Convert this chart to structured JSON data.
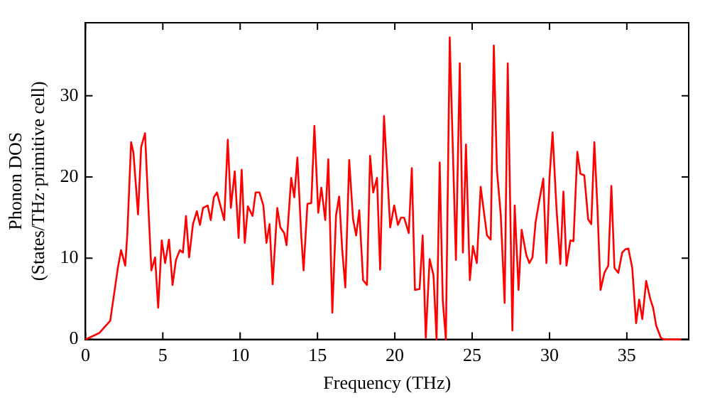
{
  "chart_data": {
    "type": "line",
    "xlabel": "Frequency (THz)",
    "ylabel": "Phonon DOS\n(States/THz·primitive cell)",
    "xlim": [
      0,
      39
    ],
    "ylim": [
      0,
      39
    ],
    "xticks": [
      0,
      5,
      10,
      15,
      20,
      25,
      30,
      35
    ],
    "yticks": [
      0,
      10,
      20,
      30
    ],
    "grid": false,
    "legend": false,
    "marker": "none",
    "line_style": "solid",
    "series": [
      {
        "color": "#ff0000",
        "x": [
          0,
          0.9,
          1.6,
          2.1,
          2.3,
          2.57,
          2.7,
          2.95,
          3.1,
          3.4,
          3.6,
          3.85,
          4.03,
          4.26,
          4.5,
          4.7,
          4.93,
          5.15,
          5.4,
          5.63,
          5.85,
          6.1,
          6.3,
          6.5,
          6.7,
          6.95,
          7.2,
          7.4,
          7.6,
          7.9,
          8.1,
          8.3,
          8.5,
          8.97,
          9.2,
          9.4,
          9.65,
          9.9,
          10.1,
          10.3,
          10.5,
          10.8,
          11,
          11.25,
          11.5,
          11.7,
          11.9,
          12.1,
          12.4,
          12.6,
          12.85,
          13,
          13.3,
          13.5,
          13.7,
          13.95,
          14.1,
          14.35,
          14.6,
          14.8,
          15.05,
          15.25,
          15.5,
          15.7,
          15.96,
          16.2,
          16.4,
          16.6,
          16.8,
          17.05,
          17.3,
          17.5,
          17.7,
          17.95,
          18.2,
          18.4,
          18.6,
          18.85,
          19.05,
          19.3,
          19.5,
          19.7,
          19.96,
          20.2,
          20.4,
          20.6,
          20.9,
          21.1,
          21.3,
          21.6,
          21.8,
          22,
          22.25,
          22.5,
          22.7,
          22.9,
          23.1,
          23.3,
          23.55,
          23.95,
          24.2,
          24.4,
          24.6,
          24.85,
          25.05,
          25.3,
          25.55,
          25.96,
          26.2,
          26.4,
          26.6,
          26.85,
          27.1,
          27.3,
          27.6,
          27.75,
          28,
          28.2,
          28.5,
          28.7,
          28.9,
          29.1,
          29.35,
          29.6,
          29.8,
          30,
          30.2,
          30.45,
          30.7,
          30.9,
          31.1,
          31.35,
          31.55,
          31.8,
          32,
          32.25,
          32.5,
          32.7,
          32.9,
          33.1,
          33.3,
          33.55,
          33.8,
          34,
          34.2,
          34.45,
          34.7,
          34.9,
          35.1,
          35.35,
          35.6,
          35.8,
          36,
          36.25,
          36.5,
          36.7,
          36.9,
          37.2,
          37.4,
          38.5
        ],
        "values": [
          0,
          0.8,
          2.3,
          8.9,
          11,
          9.1,
          12.8,
          24.3,
          23,
          15.4,
          23.7,
          25.4,
          17.8,
          8.5,
          10.1,
          3.9,
          12.2,
          9.4,
          12.3,
          6.7,
          9.8,
          11,
          10.7,
          15.2,
          10.1,
          14.2,
          15.8,
          14.1,
          16.2,
          16.5,
          14.7,
          17.5,
          18.1,
          14.7,
          24.6,
          16.2,
          20.7,
          12.5,
          20.9,
          11.9,
          16.4,
          15.2,
          18.1,
          18.1,
          16.5,
          11.9,
          14.2,
          6.8,
          16.2,
          13.8,
          13.1,
          11.6,
          19.9,
          17.5,
          22.4,
          12.8,
          8.5,
          16.7,
          16.8,
          26.3,
          15.6,
          18.7,
          14.7,
          22.2,
          3.3,
          15.3,
          17.6,
          11,
          6.4,
          22.1,
          14.8,
          12.8,
          15.9,
          7.3,
          6.7,
          22.6,
          18.1,
          19.9,
          8.6,
          27.5,
          20.9,
          13.8,
          16.5,
          14.1,
          15,
          15,
          13.1,
          21.1,
          6.1,
          6.2,
          12.8,
          0.2,
          9.9,
          7.9,
          0,
          21.8,
          4.8,
          0,
          37.2,
          9.8,
          34,
          10.7,
          24,
          7.3,
          11.5,
          9.4,
          18.8,
          12.8,
          12.3,
          36.2,
          20.9,
          15.3,
          4.5,
          34,
          1.1,
          16.5,
          6.1,
          13.5,
          10.4,
          9.4,
          10.1,
          14.4,
          17.2,
          19.8,
          9.4,
          19.9,
          25.5,
          16.2,
          9.3,
          18.2,
          9.1,
          12.2,
          12.1,
          23.1,
          20.4,
          20.2,
          14.8,
          14.2,
          24.3,
          16.2,
          6.1,
          8.2,
          9.1,
          18.9,
          8.8,
          8.2,
          10.7,
          11.1,
          11.2,
          8.8,
          2,
          4.9,
          2.5,
          7.2,
          5.1,
          3.9,
          1.7,
          0.2,
          0,
          0
        ]
      }
    ]
  }
}
